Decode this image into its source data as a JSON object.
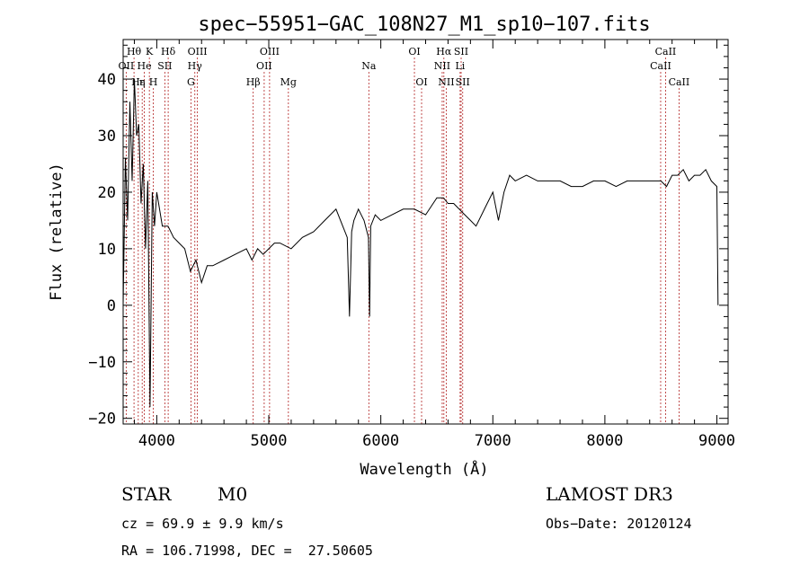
{
  "chart_data": {
    "type": "line",
    "title": "spec−55951−GAC_108N27_M1_sp10−107.fits",
    "xlabel": "Wavelength (Å)",
    "ylabel": "Flux (relative)",
    "xlim": [
      3700,
      9100
    ],
    "ylim": [
      -21,
      47
    ],
    "xticks": [
      4000,
      5000,
      6000,
      7000,
      8000,
      9000
    ],
    "yticks": [
      -20,
      -10,
      0,
      10,
      20,
      30,
      40
    ],
    "grid": false,
    "series": [
      {
        "name": "flux",
        "x": [
          3700,
          3720,
          3740,
          3760,
          3780,
          3800,
          3820,
          3840,
          3860,
          3880,
          3900,
          3920,
          3940,
          3960,
          3980,
          4000,
          4050,
          4100,
          4150,
          4200,
          4250,
          4300,
          4350,
          4400,
          4450,
          4500,
          4600,
          4700,
          4800,
          4850,
          4900,
          4950,
          5000,
          5050,
          5100,
          5200,
          5300,
          5400,
          5500,
          5600,
          5700,
          5720,
          5740,
          5760,
          5800,
          5850,
          5890,
          5900,
          5910,
          5950,
          6000,
          6100,
          6200,
          6300,
          6400,
          6500,
          6560,
          6600,
          6650,
          6700,
          6750,
          6800,
          6850,
          6900,
          6950,
          7000,
          7050,
          7100,
          7150,
          7200,
          7300,
          7400,
          7500,
          7600,
          7700,
          7800,
          7900,
          8000,
          8100,
          8200,
          8300,
          8400,
          8500,
          8550,
          8600,
          8650,
          8700,
          8750,
          8800,
          8850,
          8900,
          8950,
          9000,
          9010
        ],
        "y": [
          0,
          26,
          15,
          36,
          22,
          40,
          30,
          32,
          18,
          25,
          10,
          22,
          -18,
          20,
          14,
          20,
          14,
          14,
          12,
          11,
          10,
          6,
          8,
          4,
          7,
          7,
          8,
          9,
          10,
          8,
          10,
          9,
          10,
          11,
          11,
          10,
          12,
          13,
          15,
          17,
          12,
          -2,
          13,
          15,
          17,
          15,
          12,
          -2,
          14,
          16,
          15,
          16,
          17,
          17,
          16,
          19,
          19,
          18,
          18,
          17,
          16,
          15,
          14,
          16,
          18,
          20,
          15,
          20,
          23,
          22,
          23,
          22,
          22,
          22,
          21,
          21,
          22,
          22,
          21,
          22,
          22,
          22,
          22,
          21,
          23,
          23,
          24,
          22,
          23,
          23,
          24,
          22,
          21,
          0
        ]
      }
    ],
    "emission_lines": [
      {
        "label": "Hθ",
        "wavelength": 3797,
        "row": 1
      },
      {
        "label": "K",
        "wavelength": 3934,
        "row": 1
      },
      {
        "label": "Hδ",
        "wavelength": 4102,
        "row": 1
      },
      {
        "label": "OIII",
        "wavelength": 4363,
        "row": 1
      },
      {
        "label": "OIII",
        "wavelength": 5007,
        "row": 1
      },
      {
        "label": "OI",
        "wavelength": 6300,
        "row": 1
      },
      {
        "label": "Hα",
        "wavelength": 6563,
        "row": 1
      },
      {
        "label": "SII",
        "wavelength": 6717,
        "row": 1
      },
      {
        "label": "CaII",
        "wavelength": 8542,
        "row": 1
      },
      {
        "label": "OII",
        "wavelength": 3727,
        "row": 2
      },
      {
        "label": "He",
        "wavelength": 3889,
        "row": 2
      },
      {
        "label": "SII",
        "wavelength": 4072,
        "row": 2
      },
      {
        "label": "Hγ",
        "wavelength": 4340,
        "row": 2
      },
      {
        "label": "OII",
        "wavelength": 4959,
        "row": 2
      },
      {
        "label": "Na",
        "wavelength": 5893,
        "row": 2
      },
      {
        "label": "NII",
        "wavelength": 6548,
        "row": 2
      },
      {
        "label": "Li",
        "wavelength": 6708,
        "row": 2
      },
      {
        "label": "CaII",
        "wavelength": 8498,
        "row": 2
      },
      {
        "label": "Hε",
        "wavelength": 3835,
        "row": 3
      },
      {
        "label": "η",
        "wavelength": 3870,
        "row": 3
      },
      {
        "label": "H",
        "wavelength": 3969,
        "row": 3
      },
      {
        "label": "G",
        "wavelength": 4305,
        "row": 3
      },
      {
        "label": "Hβ",
        "wavelength": 4861,
        "row": 3
      },
      {
        "label": "Mg",
        "wavelength": 5175,
        "row": 3
      },
      {
        "label": "OI",
        "wavelength": 6364,
        "row": 3
      },
      {
        "label": "NII",
        "wavelength": 6584,
        "row": 3
      },
      {
        "label": "SII",
        "wavelength": 6731,
        "row": 3
      },
      {
        "label": "CaII",
        "wavelength": 8662,
        "row": 3
      }
    ]
  },
  "info": {
    "object_class": "STAR",
    "subclass": "M0",
    "survey": "LAMOST DR3",
    "redshift": "cz = 69.9 ± 9.9 km/s",
    "obs_date": "Obs−Date: 20120124",
    "coords": "RA = 106.71998, DEC =  27.50605"
  }
}
